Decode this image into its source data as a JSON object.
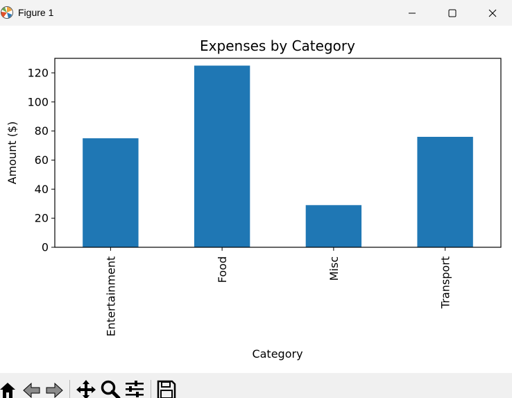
{
  "window": {
    "title": "Figure 1"
  },
  "icons": {
    "app": "matplotlib-icon",
    "minimize": "minimize-icon",
    "maximize": "maximize-icon",
    "close": "close-icon",
    "home": "home-icon",
    "back": "back-arrow-icon",
    "forward": "forward-arrow-icon",
    "pan": "pan-move-icon",
    "zoom": "zoom-magnifier-icon",
    "configure": "configure-subplots-icon",
    "save": "save-floppy-icon"
  },
  "colors": {
    "bar": "#1f77b4",
    "titlebar": "#f3f3f3",
    "toolbar": "#f0f0f0"
  },
  "chart_data": {
    "type": "bar",
    "title": "Expenses by Category",
    "xlabel": "Category",
    "ylabel": "Amount ($)",
    "categories": [
      "Entertainment",
      "Food",
      "Misc",
      "Transport"
    ],
    "values": [
      75,
      125,
      29,
      76
    ],
    "ylim": [
      0,
      130
    ],
    "yticks": [
      0,
      20,
      40,
      60,
      80,
      100,
      120
    ],
    "grid": false,
    "legend": "none"
  }
}
